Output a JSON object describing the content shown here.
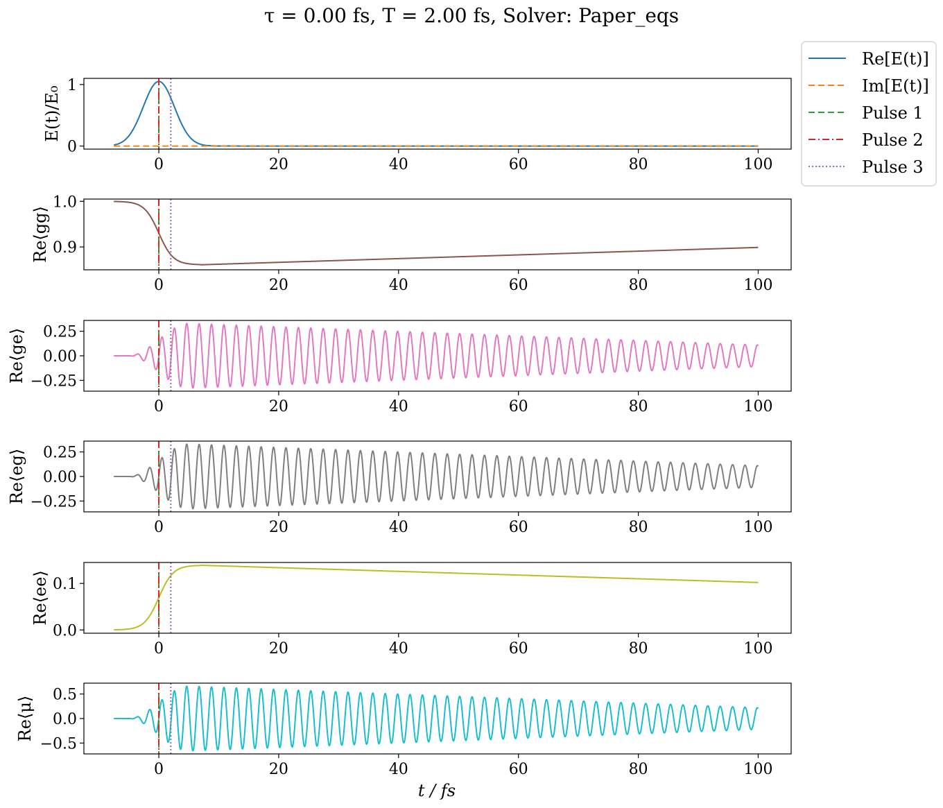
{
  "figure": {
    "title": "τ = 0.00 fs,    T = 2.00 fs,    Solver: Paper_eqs"
  },
  "chart_data": {
    "type": "line",
    "shared_x": {
      "label": "t / fs",
      "ticks": [
        0,
        20,
        40,
        60,
        80,
        100
      ],
      "tick_labels": [
        "0",
        "20",
        "40",
        "60",
        "80",
        "100"
      ],
      "xlim": [
        -12.5,
        105.5
      ],
      "range": [
        -7.5,
        100
      ]
    },
    "markers": [
      {
        "name": "Pulse 1",
        "x": 0,
        "color": "#2ca02c",
        "style": "dashed"
      },
      {
        "name": "Pulse 2",
        "x": 0,
        "color": "#d62728",
        "style": "dashdot"
      },
      {
        "name": "Pulse 3",
        "x": 2,
        "color": "#9467bd",
        "style": "dotted"
      }
    ],
    "panels": [
      {
        "id": "field",
        "ylabel": "E(t)/E₀",
        "ylim": [
          -0.05,
          1.1
        ],
        "yticks": [
          0,
          1
        ],
        "ytick_labels": [
          "0",
          "1"
        ],
        "series": [
          {
            "name": "Re[E(t)]",
            "color": "#1f77b4",
            "style": "solid",
            "model": {
              "kind": "gaussian",
              "amp": 1.05,
              "sigma": 2.6,
              "start": -7.5,
              "end": 100
            }
          },
          {
            "name": "Im[E(t)]",
            "color": "#ff7f0e",
            "style": "dashed",
            "model": {
              "kind": "const",
              "value": 0,
              "start": -7.5,
              "end": 100
            }
          }
        ]
      },
      {
        "id": "rho_gg",
        "ylabel": "Re⟨gg⟩",
        "ylim": [
          0.85,
          1.005
        ],
        "yticks": [
          0.9,
          1.0
        ],
        "ytick_labels": [
          "0.9",
          "1.0"
        ],
        "series": [
          {
            "color": "#8c564b",
            "style": "solid",
            "model": {
              "kind": "population",
              "base": 1.0,
              "delta": -0.139,
              "relax_to": 0.899,
              "relax_at": 100,
              "t0": 7
            }
          }
        ]
      },
      {
        "id": "rho_ge",
        "ylabel": "Re⟨ge⟩",
        "ylim": [
          -0.36,
          0.36
        ],
        "yticks": [
          -0.25,
          0,
          0.25
        ],
        "ytick_labels": [
          "−0.25",
          "0.00",
          "0.25"
        ],
        "series": [
          {
            "color": "#e377c2",
            "style": "solid",
            "model": {
              "kind": "coherence",
              "amp": 0.33,
              "period": 2.07,
              "decay_to": 0.11,
              "rise_start": -5,
              "rise_end": 5
            }
          }
        ]
      },
      {
        "id": "rho_eg",
        "ylabel": "Re⟨eg⟩",
        "ylim": [
          -0.36,
          0.36
        ],
        "yticks": [
          -0.25,
          0,
          0.25
        ],
        "ytick_labels": [
          "−0.25",
          "0.00",
          "0.25"
        ],
        "series": [
          {
            "color": "#7f7f7f",
            "style": "solid",
            "model": {
              "kind": "coherence",
              "amp": 0.33,
              "period": 2.07,
              "decay_to": 0.11,
              "rise_start": -5,
              "rise_end": 5
            }
          }
        ]
      },
      {
        "id": "rho_ee",
        "ylabel": "Re⟨ee⟩",
        "ylim": [
          -0.007,
          0.145
        ],
        "yticks": [
          0,
          0.1
        ],
        "ytick_labels": [
          "0.0",
          "0.1"
        ],
        "series": [
          {
            "color": "#bcbd22",
            "style": "solid",
            "model": {
              "kind": "population",
              "base": 0.0,
              "delta": 0.139,
              "relax_to": 0.102,
              "relax_at": 100,
              "t0": 7
            }
          }
        ]
      },
      {
        "id": "mu",
        "ylabel": "Re⟨μ⟩",
        "ylim": [
          -0.72,
          0.72
        ],
        "yticks": [
          -0.5,
          0,
          0.5
        ],
        "ytick_labels": [
          "−0.5",
          "0.0",
          "0.5"
        ],
        "series": [
          {
            "color": "#17becf",
            "style": "solid",
            "model": {
              "kind": "coherence",
              "amp": 0.66,
              "period": 2.07,
              "decay_to": 0.22,
              "rise_start": -5,
              "rise_end": 5
            }
          }
        ]
      }
    ],
    "legend": {
      "placement": "outside-right-top",
      "entries": [
        {
          "label": "Re[E(t)]",
          "color": "#1f77b4",
          "style": "solid"
        },
        {
          "label": "Im[E(t)]",
          "color": "#ff7f0e",
          "style": "dashed"
        },
        {
          "label": "Pulse 1",
          "color": "#2ca02c",
          "style": "dashed"
        },
        {
          "label": "Pulse 2",
          "color": "#d62728",
          "style": "dashdot"
        },
        {
          "label": "Pulse 3",
          "color": "#9467bd",
          "style": "dotted"
        }
      ]
    }
  }
}
